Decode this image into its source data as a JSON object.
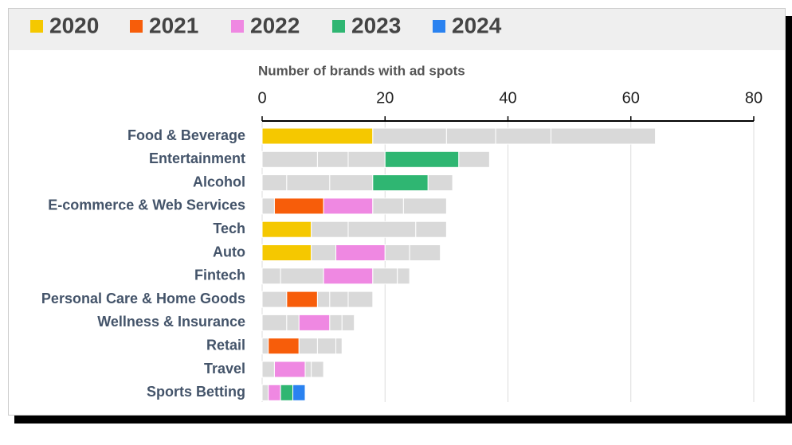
{
  "chart_data": {
    "type": "bar",
    "orientation": "horizontal",
    "stacked": true,
    "x_label": "Number of brands with ad spots",
    "categories": [
      "Food & Beverage",
      "Entertainment",
      "Alcohol",
      "E-commerce & Web Services",
      "Tech",
      "Auto",
      "Fintech",
      "Personal Care & Home Goods",
      "Wellness & Insurance",
      "Retail",
      "Travel",
      "Sports Betting"
    ],
    "muted_color": "#d9d9d9",
    "series": [
      {
        "name": "2020",
        "color": "#f5c800",
        "values": [
          18,
          9,
          4,
          2,
          8,
          8,
          3,
          4,
          4,
          1,
          2,
          1
        ],
        "highlighted": [
          true,
          false,
          false,
          false,
          true,
          true,
          false,
          false,
          false,
          false,
          false,
          false
        ]
      },
      {
        "name": "2021",
        "color": "#f75d0a",
        "values": [
          12,
          5,
          7,
          8,
          6,
          4,
          7,
          5,
          2,
          5,
          0,
          0
        ],
        "highlighted": [
          false,
          false,
          false,
          true,
          false,
          false,
          false,
          true,
          false,
          true,
          false,
          false
        ]
      },
      {
        "name": "2022",
        "color": "#ef88e2",
        "values": [
          8,
          6,
          7,
          8,
          11,
          8,
          8,
          2,
          5,
          3,
          5,
          2
        ],
        "highlighted": [
          false,
          false,
          false,
          true,
          false,
          true,
          true,
          false,
          true,
          false,
          true,
          true
        ]
      },
      {
        "name": "2023",
        "color": "#2fb672",
        "values": [
          9,
          12,
          9,
          5,
          5,
          4,
          4,
          3,
          2,
          3,
          1,
          2
        ],
        "highlighted": [
          false,
          true,
          true,
          false,
          false,
          false,
          false,
          false,
          false,
          false,
          false,
          true
        ]
      },
      {
        "name": "2024",
        "color": "#2a82f0",
        "values": [
          17,
          5,
          4,
          7,
          0,
          5,
          2,
          4,
          2,
          1,
          2,
          2
        ],
        "highlighted": [
          false,
          false,
          false,
          false,
          false,
          false,
          false,
          false,
          false,
          false,
          false,
          true
        ]
      }
    ],
    "xlim": [
      0,
      80
    ],
    "xticks": [
      0,
      20,
      40,
      60,
      80
    ],
    "grid": true
  }
}
